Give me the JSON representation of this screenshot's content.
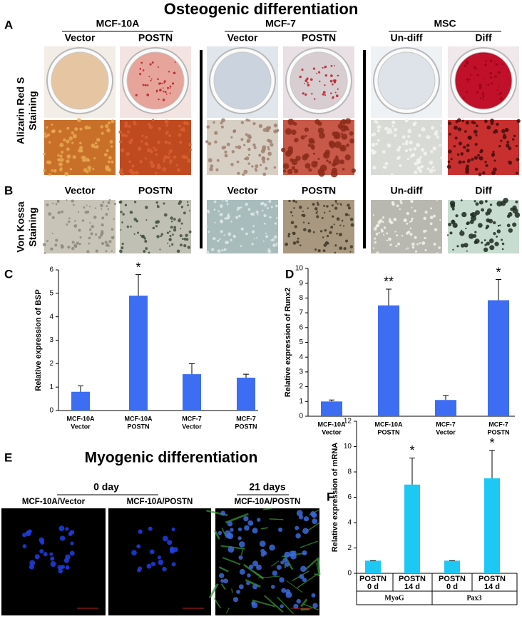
{
  "title": "Osteogenic differentiation",
  "panel_a": {
    "label": "A",
    "row_label": [
      "Alizarin Red S",
      "Staining"
    ],
    "groups": [
      {
        "name": "MCF-10A",
        "columns": [
          "Vector",
          "POSTN"
        ]
      },
      {
        "name": "MCF-7",
        "columns": [
          "Vector",
          "POSTN"
        ]
      },
      {
        "name": "MSC",
        "columns": [
          "Un-diff",
          "Diff"
        ]
      }
    ]
  },
  "panel_b": {
    "label": "B",
    "row_label": [
      "Von Kossa",
      "Staining"
    ],
    "columns": [
      "Vector",
      "POSTN",
      "Vector",
      "POSTN",
      "Un-diff",
      "Diff"
    ]
  },
  "panel_e": {
    "label": "E",
    "title": "Myogenic differentiation",
    "groups": [
      {
        "name": "0 day",
        "columns": [
          "MCF-10A/Vector",
          "MCF-10A/POSTN"
        ]
      },
      {
        "name": "21 days",
        "columns": [
          "MCF-10A/POSTN"
        ]
      }
    ]
  },
  "chart_data": [
    {
      "type": "bar",
      "panel": "C",
      "ylabel": "Relative expression of BSP",
      "categories": [
        [
          "MCF-10A",
          "Vector"
        ],
        [
          "MCF-10A",
          "POSTN"
        ],
        [
          "MCF-7",
          "Vector"
        ],
        [
          "MCF-7",
          "POSTN"
        ]
      ],
      "values": [
        0.8,
        4.9,
        1.55,
        1.4
      ],
      "errors": [
        0.25,
        0.9,
        0.45,
        0.15
      ],
      "annotations": [
        null,
        "*",
        null,
        null
      ],
      "color": "#3d6df2",
      "ylim": [
        0,
        6
      ],
      "yticks": [
        0,
        1,
        2,
        3,
        4,
        5,
        6
      ]
    },
    {
      "type": "bar",
      "panel": "D",
      "ylabel": "Relative expression of  Runx2",
      "categories": [
        [
          "MCF-10A",
          "Vector"
        ],
        [
          "MCF-10A",
          "POSTN"
        ],
        [
          "MCF-7",
          "Vector"
        ],
        [
          "MCF-7",
          "POSTN"
        ]
      ],
      "values": [
        1.0,
        7.5,
        1.1,
        7.85
      ],
      "errors": [
        0.1,
        1.1,
        0.3,
        1.4
      ],
      "annotations": [
        null,
        "**",
        null,
        "*"
      ],
      "color": "#3d6df2",
      "ylim": [
        0,
        10
      ],
      "yticks": [
        0,
        1,
        2,
        3,
        4,
        5,
        6,
        7,
        8,
        9,
        10
      ]
    },
    {
      "type": "bar",
      "panel": "F",
      "ylabel": "Relative expression of  mRNA",
      "categories": [
        [
          "POSTN",
          "0 d"
        ],
        [
          "POSTN",
          "14 d"
        ],
        [
          "POSTN",
          "0 d"
        ],
        [
          "POSTN",
          "14 d"
        ]
      ],
      "groups": [
        "MyoG",
        "Pax3"
      ],
      "values": [
        1,
        7,
        1,
        7.5
      ],
      "errors": [
        0,
        2.1,
        0,
        2.2
      ],
      "annotations": [
        null,
        "*",
        null,
        "*"
      ],
      "color": "#1ec8f5",
      "ylim": [
        0,
        12
      ],
      "yticks": [
        0,
        2,
        4,
        6,
        8,
        10,
        12
      ]
    }
  ]
}
